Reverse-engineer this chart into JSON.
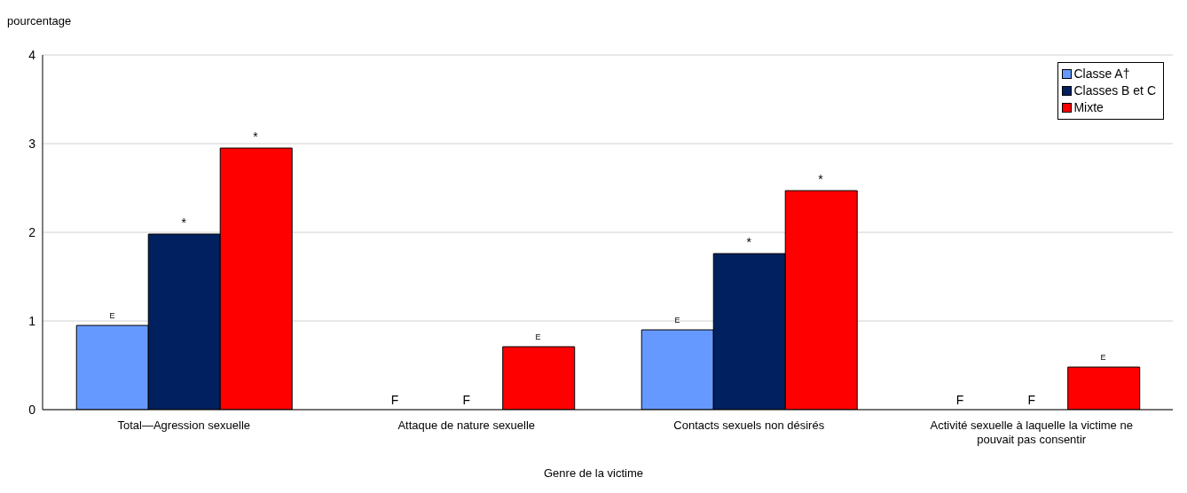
{
  "chart_data": {
    "type": "bar",
    "ylabel": "pourcentage",
    "xlabel": "Genre de la victime",
    "categories": [
      "Total—Agression sexuelle",
      "Attaque de nature sexuelle",
      "Contacts sexuels non désirés",
      "Activité sexuelle à laquelle la victime ne pouvait pas consentir"
    ],
    "series": [
      {
        "name": "Classe A†",
        "color": "#6699ff",
        "values": [
          0.95,
          null,
          0.9,
          null
        ],
        "value_labels": [
          "E",
          "F",
          "E",
          "F"
        ]
      },
      {
        "name": "Classes B et C",
        "color": "#002060",
        "values": [
          1.98,
          null,
          1.76,
          null
        ],
        "value_labels": [
          "*",
          "F",
          "*",
          "F"
        ]
      },
      {
        "name": "Mixte",
        "color": "#ff0000",
        "values": [
          2.95,
          0.71,
          2.47,
          0.48
        ],
        "value_labels": [
          "*",
          "E",
          "*",
          "E"
        ]
      }
    ],
    "ylim": [
      0,
      4
    ],
    "yticks": [
      0,
      1,
      2,
      3,
      4
    ],
    "grid": "y",
    "legend": "top right"
  }
}
